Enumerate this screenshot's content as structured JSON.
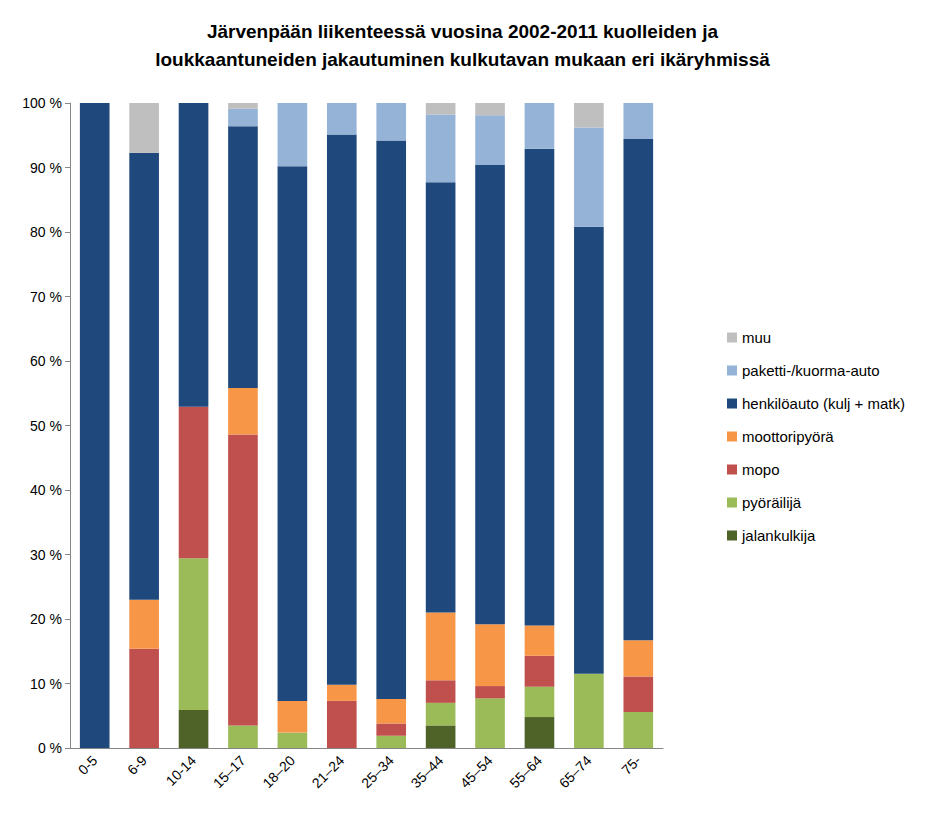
{
  "chart_data": {
    "type": "bar",
    "title": "Järvenpään liikenteessä vuosina 2002-2011 kuolleiden ja\nloukkaantuneiden jakautuminen kulkutavan mukaan eri ikäryhmissä",
    "stacked": true,
    "grid": false,
    "legend": "right",
    "categories": [
      "0-5",
      "6-9",
      "10-14",
      "15–17",
      "18–20",
      "21–24",
      "25–34",
      "35–44",
      "45–54",
      "55–64",
      "65–74",
      "75-"
    ],
    "ylim": [
      0,
      100
    ],
    "yticks": [
      {
        "value": 0,
        "label": "0 %"
      },
      {
        "value": 10,
        "label": "10 %"
      },
      {
        "value": 20,
        "label": "20 %"
      },
      {
        "value": 30,
        "label": "30 %"
      },
      {
        "value": 40,
        "label": "40 %"
      },
      {
        "value": 50,
        "label": "50 %"
      },
      {
        "value": 60,
        "label": "60 %"
      },
      {
        "value": 70,
        "label": "70 %"
      },
      {
        "value": 80,
        "label": "80 %"
      },
      {
        "value": 90,
        "label": "90 %"
      },
      {
        "value": 100,
        "label": "100 %"
      }
    ],
    "series": [
      {
        "name": "jalankulkija",
        "color": "#4f6228",
        "values": [
          0,
          0,
          5.9,
          0,
          0,
          0,
          0,
          3.5,
          0,
          4.8,
          0,
          0
        ]
      },
      {
        "name": "pyöräilijä",
        "color": "#9bbb59",
        "values": [
          0,
          0,
          23.5,
          3.5,
          2.4,
          0,
          1.9,
          3.5,
          7.7,
          4.7,
          11.5,
          5.6
        ]
      },
      {
        "name": "mopo",
        "color": "#c0504d",
        "values": [
          0,
          15.4,
          23.5,
          45.1,
          0,
          7.3,
          1.9,
          3.5,
          1.9,
          4.8,
          0,
          5.5
        ]
      },
      {
        "name": "moottoripyörä",
        "color": "#f79646",
        "values": [
          0,
          7.6,
          0,
          7.2,
          4.9,
          2.5,
          3.8,
          10.5,
          9.6,
          4.7,
          0,
          5.6
        ]
      },
      {
        "name": "henkilöauto (kulj + matk)",
        "color": "#1f497d",
        "values": [
          100,
          69.3,
          47.1,
          40.6,
          82.9,
          85.3,
          86.6,
          66.7,
          71.2,
          73.9,
          69.3,
          77.7
        ]
      },
      {
        "name": "paketti-/kuorma-auto",
        "color": "#95b3d7",
        "values": [
          0,
          0,
          0,
          2.7,
          9.8,
          4.9,
          5.8,
          10.5,
          7.7,
          7.1,
          15.4,
          5.6
        ]
      },
      {
        "name": "muu",
        "color": "#bfbfbf",
        "values": [
          0,
          7.7,
          0,
          0.9,
          0,
          0,
          0,
          1.8,
          1.9,
          0,
          3.8,
          0
        ]
      }
    ]
  }
}
